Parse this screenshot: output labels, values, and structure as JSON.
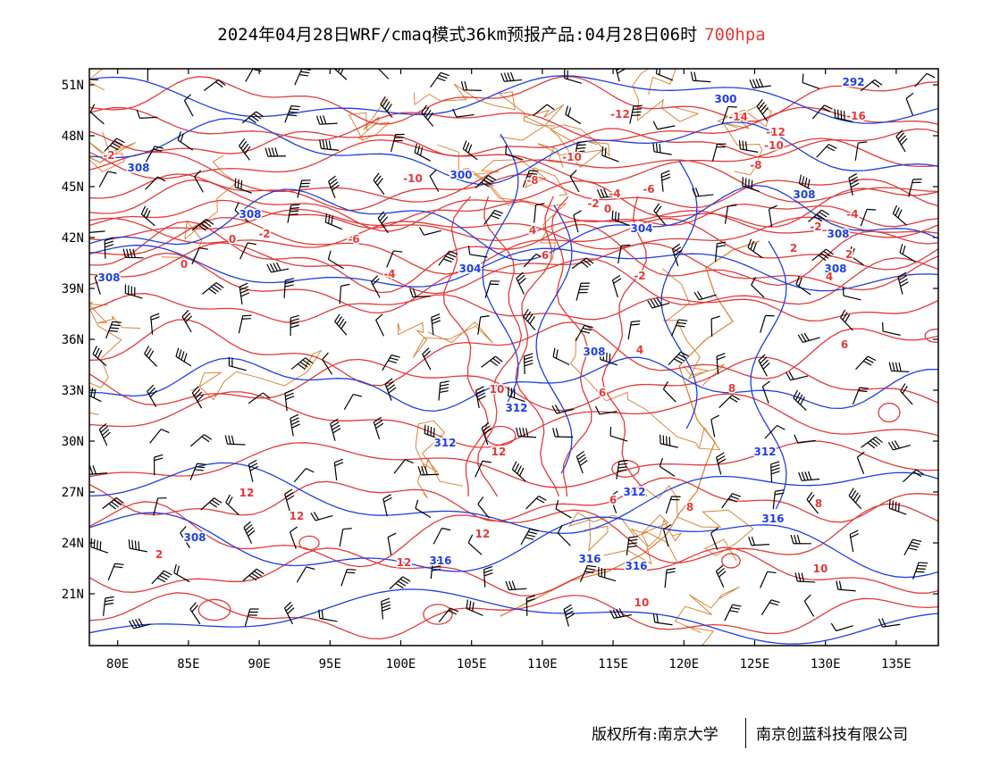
{
  "title": {
    "main": "2024年04月28日WRF/cmaq模式36km预报产品:04月28日06时",
    "level": "700hpa",
    "level_color": "#e23a3a"
  },
  "axes": {
    "lat_labels": [
      "51N",
      "48N",
      "45N",
      "42N",
      "39N",
      "36N",
      "33N",
      "30N",
      "27N",
      "24N",
      "21N"
    ],
    "lon_labels": [
      "80E",
      "85E",
      "90E",
      "95E",
      "100E",
      "105E",
      "110E",
      "115E",
      "120E",
      "125E",
      "130E",
      "135E"
    ]
  },
  "contour_colors": {
    "geopotential": "#1f3fe0",
    "temperature": "#e23a3a",
    "boundary": "#d9863a",
    "wind_barb": "#000000"
  },
  "height_labels": [
    "292",
    "300",
    "300",
    "308",
    "308",
    "308",
    "308",
    "304",
    "304",
    "308",
    "308",
    "308",
    "312",
    "312",
    "312",
    "312",
    "316",
    "316",
    "316",
    "316",
    "308"
  ],
  "temp_labels": [
    "-16",
    "-14",
    "-12",
    "-12",
    "-10",
    "-10",
    "-10",
    "-8",
    "-8",
    "-6",
    "-6",
    "-4",
    "-4",
    "-4",
    "-2",
    "-2",
    "-2",
    "-2",
    "0",
    "0",
    "0",
    "2",
    "2",
    "4",
    "4",
    "4",
    "6",
    "6",
    "6",
    "6",
    "8",
    "8",
    "8",
    "10",
    "10",
    "10",
    "12",
    "12",
    "12",
    "12",
    "12",
    "2",
    "-2"
  ],
  "footer": {
    "left": "版权所有:南京大学",
    "right": "南京创蓝科技有限公司"
  }
}
